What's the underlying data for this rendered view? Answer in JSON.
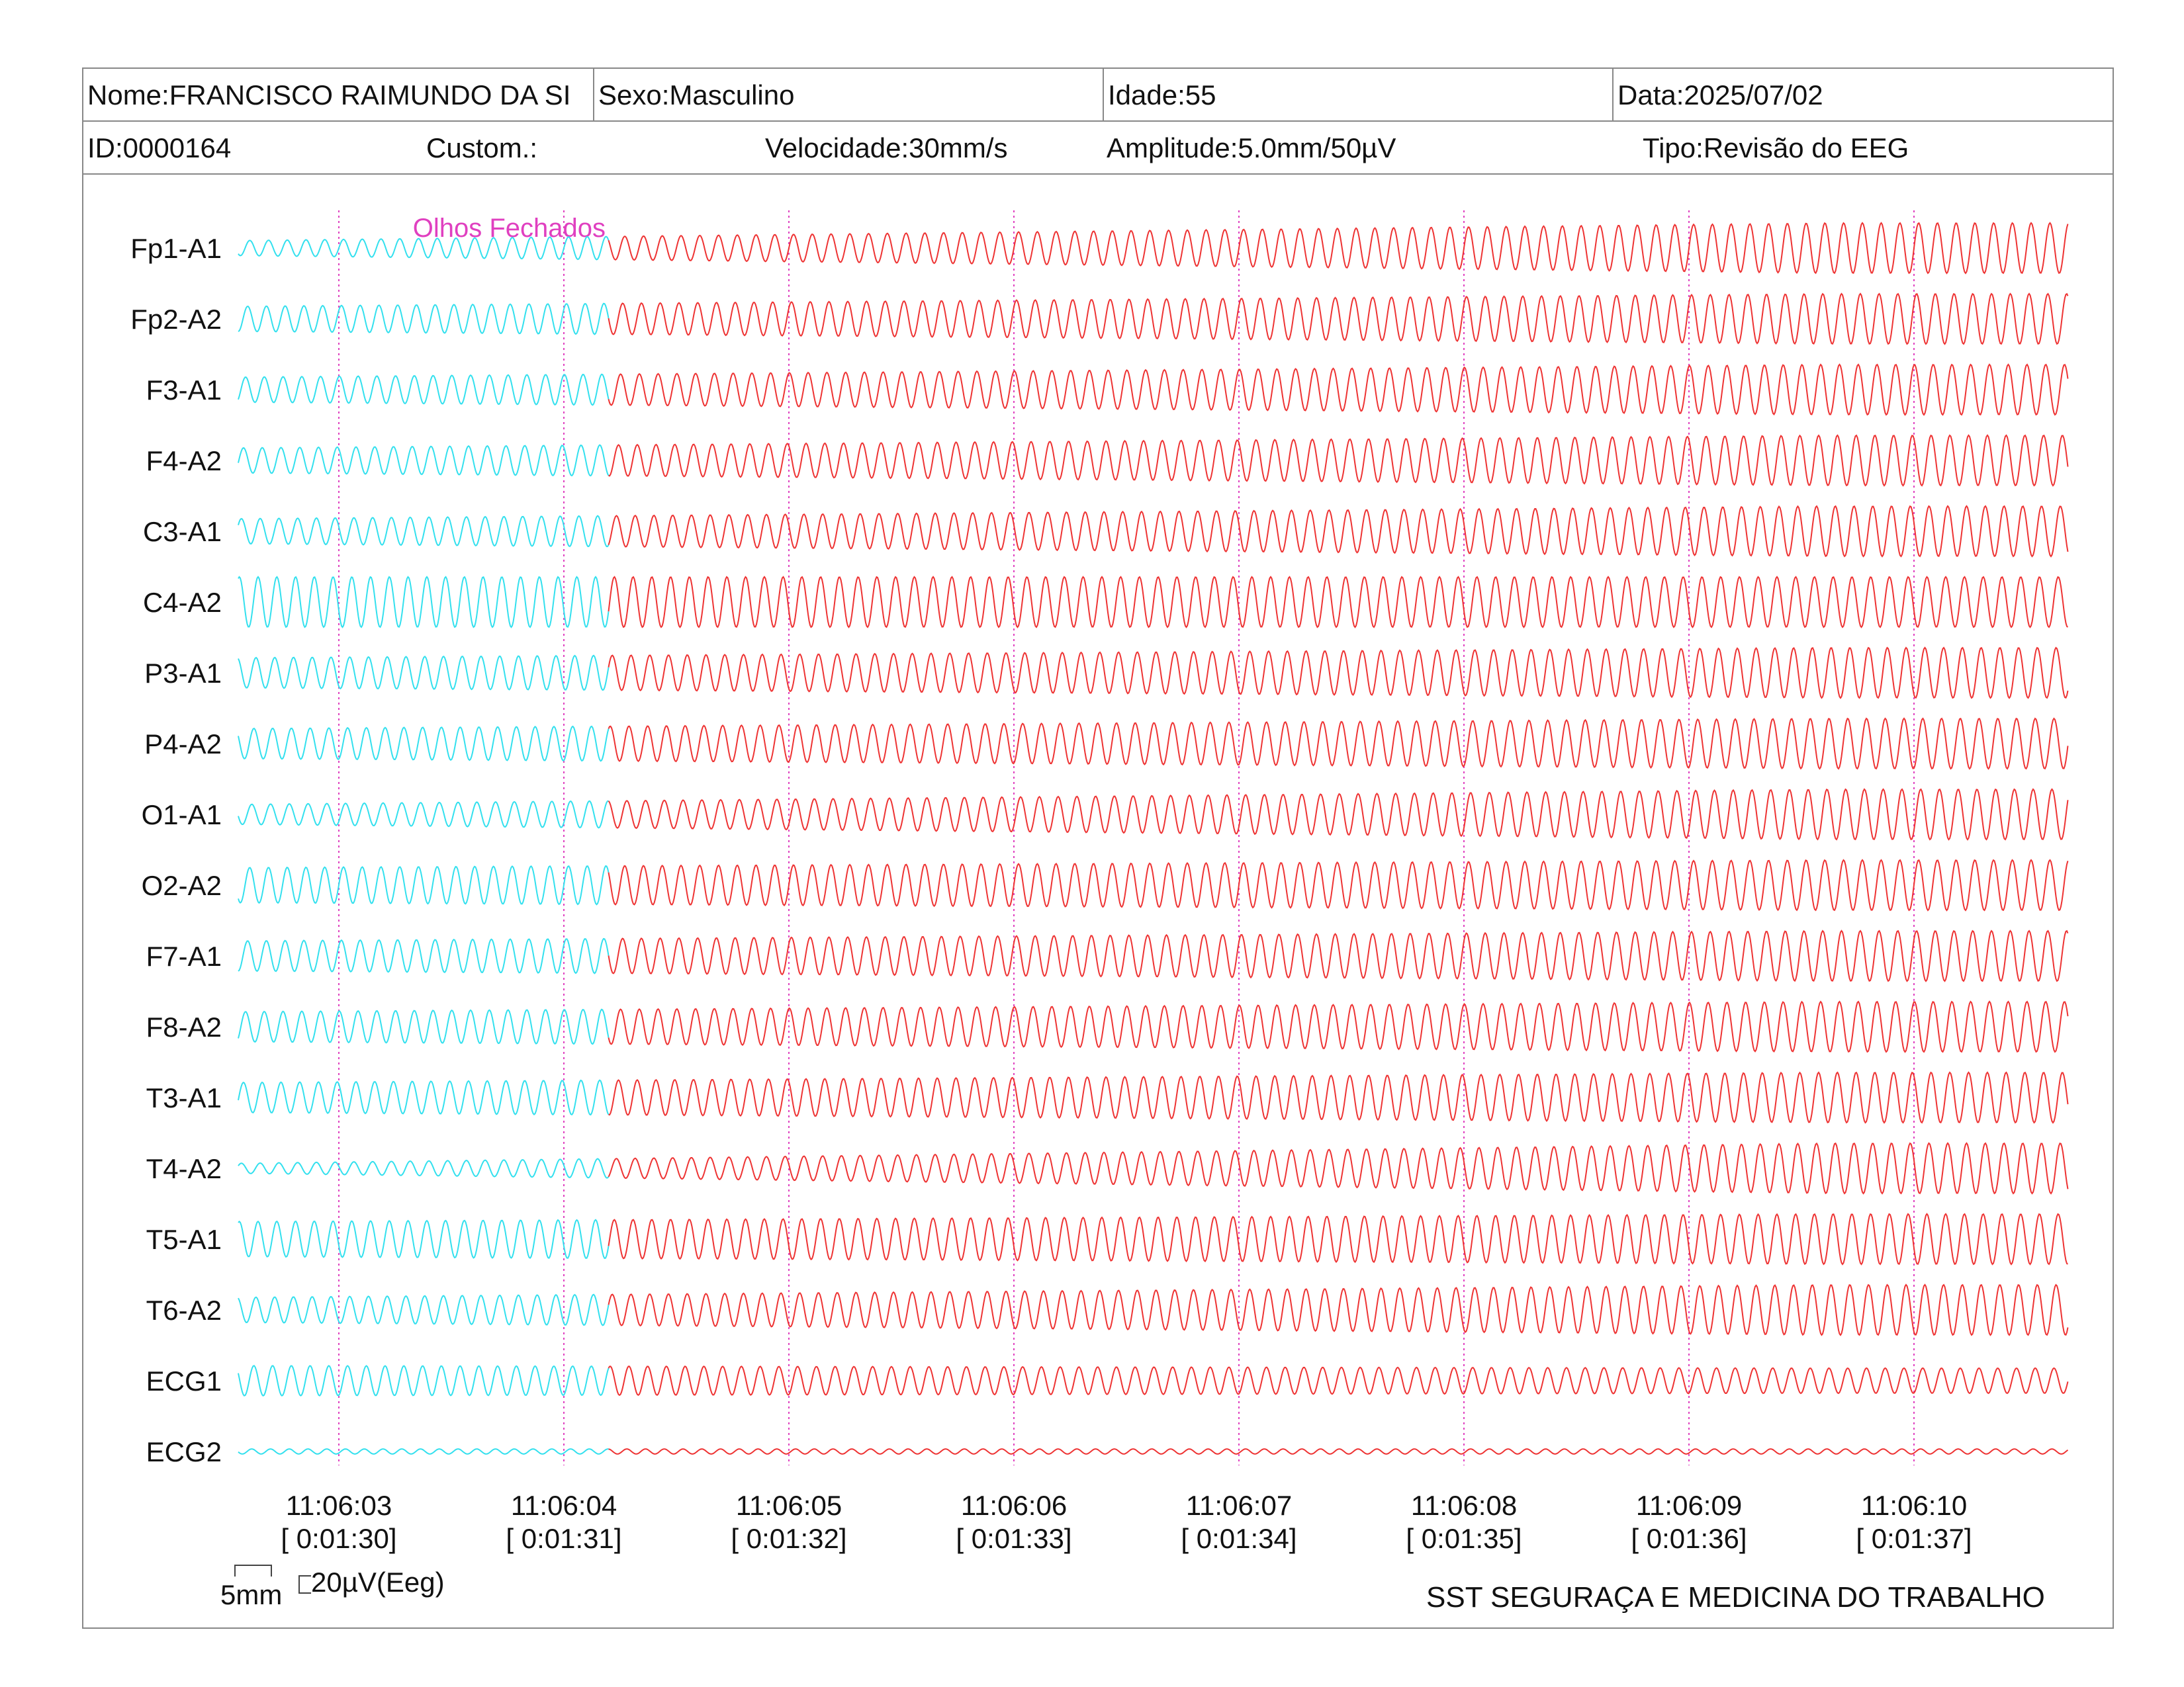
{
  "header": {
    "name": "Nome:FRANCISCO RAIMUNDO DA SI",
    "sex": "Sexo:Masculino",
    "age": "Idade:55",
    "date": "Data:2025/07/02",
    "id": "ID:0000164",
    "custom": "Custom.:",
    "speed": "Velocidade:30mm/s",
    "amplitude": "Amplitude:5.0mm/50µV",
    "type": "Tipo:Revisão do EEG"
  },
  "footer": {
    "scale_time": "5mm",
    "scale_amp": "20µV(Eeg)",
    "clinic": "SST SEGURAÇA E MEDICINA DO TRABALHO"
  },
  "colors": {
    "trace_before": "#33e0ee",
    "trace_after": "#ee3333",
    "marker": "#e040c0",
    "frame": "#888888"
  },
  "chart_data": {
    "type": "line",
    "title": "",
    "channels": [
      "Fp1-A1",
      "Fp2-A2",
      "F3-A1",
      "F4-A2",
      "C3-A1",
      "C4-A2",
      "P3-A1",
      "P4-A2",
      "O1-A1",
      "O2-A2",
      "F7-A1",
      "F8-A2",
      "T3-A1",
      "T4-A2",
      "T5-A1",
      "T6-A2",
      "ECG1",
      "ECG2"
    ],
    "amplitude_growth": [
      [
        0.3,
        1.0
      ],
      [
        0.5,
        1.0
      ],
      [
        0.5,
        1.0
      ],
      [
        0.5,
        1.0
      ],
      [
        0.5,
        1.0
      ],
      [
        1.0,
        1.0
      ],
      [
        0.6,
        1.0
      ],
      [
        0.6,
        1.0
      ],
      [
        0.4,
        1.0
      ],
      [
        0.7,
        1.0
      ],
      [
        0.6,
        1.0
      ],
      [
        0.6,
        1.0
      ],
      [
        0.6,
        1.0
      ],
      [
        0.2,
        1.0
      ],
      [
        0.7,
        1.0
      ],
      [
        0.5,
        1.0
      ],
      [
        0.6,
        0.5
      ],
      [
        0.1,
        0.1
      ]
    ],
    "time_ticks": [
      {
        "clock": "11:06:03",
        "elapsed": "[ 0:01:30]"
      },
      {
        "clock": "11:06:04",
        "elapsed": "[ 0:01:31]"
      },
      {
        "clock": "11:06:05",
        "elapsed": "[ 0:01:32]"
      },
      {
        "clock": "11:06:06",
        "elapsed": "[ 0:01:33]"
      },
      {
        "clock": "11:06:07",
        "elapsed": "[ 0:01:34]"
      },
      {
        "clock": "11:06:08",
        "elapsed": "[ 0:01:35]"
      },
      {
        "clock": "11:06:09",
        "elapsed": "[ 0:01:36]"
      },
      {
        "clock": "11:06:10",
        "elapsed": "[ 0:01:37]"
      }
    ],
    "annotation": {
      "label": "Olhos Fechados",
      "time_s": 1.2
    },
    "window_start_s": -0.45,
    "window_end_s": 7.7,
    "oscillation_hz": 12
  }
}
